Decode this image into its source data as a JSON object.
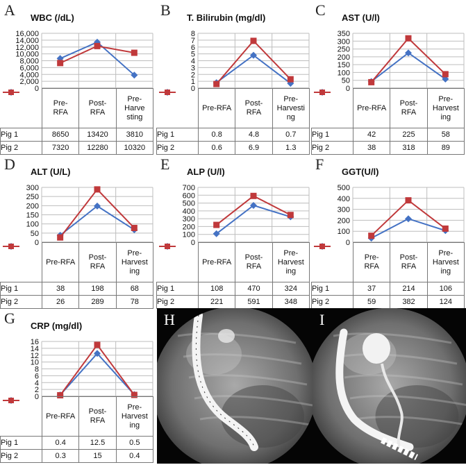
{
  "panels": [
    {
      "letter": "A",
      "title": "WBC (/dL)",
      "ymax": 16000,
      "step": 2000,
      "yticks": [
        "0",
        "2,000",
        "4,000",
        "6,000",
        "8,000",
        "10,000",
        "12,000",
        "14,000",
        "16,000"
      ],
      "categories": [
        "Pre-RFA",
        "Post-RFA",
        "Pre-Harvesting"
      ],
      "cat_lines": [
        [
          "Pre-",
          "RFA"
        ],
        [
          "Post-",
          "RFA"
        ],
        [
          "Pre-",
          "Harve",
          "sting"
        ]
      ],
      "series": [
        {
          "name": "Pig 1",
          "values": [
            8650,
            13420,
            3810
          ],
          "cells": [
            "8650",
            "13420",
            "3810"
          ]
        },
        {
          "name": "Pig 2",
          "values": [
            7320,
            12280,
            10320
          ],
          "cells": [
            "7320",
            "12280",
            "10320"
          ]
        }
      ]
    },
    {
      "letter": "B",
      "title": "T. Bilirubin (mg/dl)",
      "ymax": 8,
      "step": 1,
      "yticks": [
        "0",
        "1",
        "2",
        "3",
        "4",
        "5",
        "6",
        "7",
        "8"
      ],
      "categories": [
        "Pre-RFA",
        "Post-RFA",
        "Pre-Harvesting"
      ],
      "cat_lines": [
        [
          "Pre-RFA"
        ],
        [
          "Post-",
          "RFA"
        ],
        [
          "Pre-",
          "Harvesti",
          "ng"
        ]
      ],
      "series": [
        {
          "name": "Pig 1",
          "values": [
            0.8,
            4.8,
            0.7
          ],
          "cells": [
            "0.8",
            "4.8",
            "0.7"
          ]
        },
        {
          "name": "Pig 2",
          "values": [
            0.6,
            6.9,
            1.3
          ],
          "cells": [
            "0.6",
            "6.9",
            "1.3"
          ]
        }
      ]
    },
    {
      "letter": "C",
      "title": "AST (U/l)",
      "ymax": 350,
      "step": 50,
      "yticks": [
        "0",
        "50",
        "100",
        "150",
        "200",
        "250",
        "300",
        "350"
      ],
      "categories": [
        "Pre-RFA",
        "Post-RFA",
        "Pre-Harvesting"
      ],
      "cat_lines": [
        [
          "Pre-RFA"
        ],
        [
          "Post-",
          "RFA"
        ],
        [
          "Pre-",
          "Harvest",
          "ing"
        ]
      ],
      "series": [
        {
          "name": "Pig 1",
          "values": [
            42,
            225,
            58
          ],
          "cells": [
            "42",
            "225",
            "58"
          ]
        },
        {
          "name": "Pig 2",
          "values": [
            38,
            318,
            89
          ],
          "cells": [
            "38",
            "318",
            "89"
          ]
        }
      ]
    },
    {
      "letter": "D",
      "title": "ALT (U/L)",
      "ymax": 300,
      "step": 50,
      "yticks": [
        "0",
        "50",
        "100",
        "150",
        "200",
        "250",
        "300"
      ],
      "categories": [
        "Pre-RFA",
        "Post-RFA",
        "Pre-Harvesting"
      ],
      "cat_lines": [
        [
          "Pre-RFA"
        ],
        [
          "Post-",
          "RFA"
        ],
        [
          "Pre-",
          "Harvest",
          "ing"
        ]
      ],
      "series": [
        {
          "name": "Pig 1",
          "values": [
            38,
            198,
            68
          ],
          "cells": [
            "38",
            "198",
            "68"
          ]
        },
        {
          "name": "Pig 2",
          "values": [
            26,
            289,
            78
          ],
          "cells": [
            "26",
            "289",
            "78"
          ]
        }
      ]
    },
    {
      "letter": "E",
      "title": "ALP (U/l)",
      "ymax": 700,
      "step": 100,
      "yticks": [
        "0",
        "100",
        "200",
        "300",
        "400",
        "500",
        "600",
        "700"
      ],
      "categories": [
        "Pre-RFA",
        "Post-RFA",
        "Pre-Harvesting"
      ],
      "cat_lines": [
        [
          "Pre-RFA"
        ],
        [
          "Post-",
          "RFA"
        ],
        [
          "Pre-",
          "Harvest",
          "ing"
        ]
      ],
      "series": [
        {
          "name": "Pig 1",
          "values": [
            108,
            470,
            324
          ],
          "cells": [
            "108",
            "470",
            "324"
          ]
        },
        {
          "name": "Pig 2",
          "values": [
            221,
            591,
            348
          ],
          "cells": [
            "221",
            "591",
            "348"
          ]
        }
      ]
    },
    {
      "letter": "F",
      "title": "GGT(U/l)",
      "ymax": 500,
      "step": 100,
      "yticks": [
        "0",
        "100",
        "200",
        "300",
        "400",
        "500"
      ],
      "categories": [
        "Pre-RFA",
        "Post-RFA",
        "Pre-Harvesting"
      ],
      "cat_lines": [
        [
          "Pre-",
          "RFA"
        ],
        [
          "Post-",
          "RFA"
        ],
        [
          "Pre-",
          "Harvest",
          "ing"
        ]
      ],
      "series": [
        {
          "name": "Pig 1",
          "values": [
            37,
            214,
            106
          ],
          "cells": [
            "37",
            "214",
            "106"
          ]
        },
        {
          "name": "Pig 2",
          "values": [
            59,
            382,
            124
          ],
          "cells": [
            "59",
            "382",
            "124"
          ]
        }
      ]
    },
    {
      "letter": "G",
      "title": "CRP (mg/dl)",
      "ymax": 16,
      "step": 2,
      "yticks": [
        "0",
        "2",
        "4",
        "6",
        "8",
        "10",
        "12",
        "14",
        "16"
      ],
      "categories": [
        "Pre-RFA",
        "Post-RFA",
        "Pre-Harvesting"
      ],
      "cat_lines": [
        [
          "Pre-RFA"
        ],
        [
          "Post-",
          "RFA"
        ],
        [
          "Pre-",
          "Harvest",
          "ing"
        ]
      ],
      "series": [
        {
          "name": "Pig 1",
          "values": [
            0.4,
            12.5,
            0.5
          ],
          "cells": [
            "0.4",
            "12.5",
            "0.5"
          ]
        },
        {
          "name": "Pig 2",
          "values": [
            0.3,
            15,
            0.4
          ],
          "cells": [
            "0.3",
            "15",
            "0.4"
          ]
        }
      ]
    }
  ],
  "images": [
    {
      "letter": "H"
    },
    {
      "letter": "I"
    }
  ],
  "colors": {
    "pig1": "#4472C4",
    "pig2": "#C0393B",
    "grid": "#bdbdbd",
    "axis": "#888888"
  }
}
